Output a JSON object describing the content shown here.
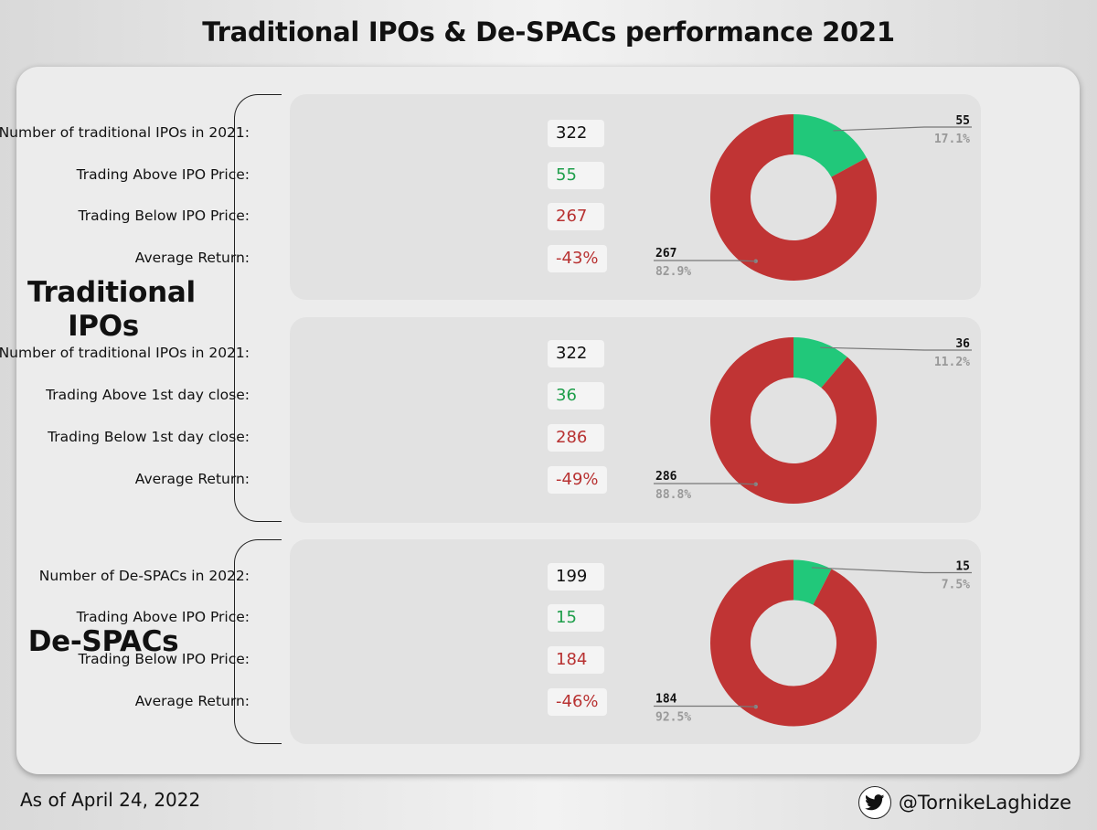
{
  "title": "Traditional IPOs & De-SPACs performance 2021",
  "groups": [
    {
      "line1": "Traditional",
      "line2": "IPOs"
    },
    {
      "line1": "De-SPACs",
      "line2": ""
    }
  ],
  "colors": {
    "above": "#21c87a",
    "below": "#c03434",
    "positive_text": "#1e9e4a",
    "negative_text": "#b83232"
  },
  "cards": [
    {
      "rows": [
        {
          "label": "Number of traditional IPOs in 2021:",
          "value": "322"
        },
        {
          "label": "Trading Above IPO Price:",
          "value": "55"
        },
        {
          "label": "Trading Below IPO Price:",
          "value": "267"
        },
        {
          "label": "Average Return:",
          "value": "-43%"
        }
      ],
      "above_count": "55",
      "above_pct": "17.1%",
      "below_count": "267",
      "below_pct": "82.9%"
    },
    {
      "rows": [
        {
          "label": "Number of traditional IPOs in 2021:",
          "value": "322"
        },
        {
          "label": "Trading Above 1st day close:",
          "value": "36"
        },
        {
          "label": "Trading Below 1st day close:",
          "value": "286"
        },
        {
          "label": "Average Return:",
          "value": "-49%"
        }
      ],
      "above_count": "36",
      "above_pct": "11.2%",
      "below_count": "286",
      "below_pct": "88.8%"
    },
    {
      "rows": [
        {
          "label": "Number of De-SPACs in 2022:",
          "value": "199"
        },
        {
          "label": "Trading Above IPO Price:",
          "value": "15"
        },
        {
          "label": "Trading Below IPO Price:",
          "value": "184"
        },
        {
          "label": "Average Return:",
          "value": "-46%"
        }
      ],
      "above_count": "15",
      "above_pct": "7.5%",
      "below_count": "184",
      "below_pct": "92.5%"
    }
  ],
  "chart_data": [
    {
      "type": "pie",
      "donut": true,
      "categories": [
        "Trading Above IPO Price",
        "Trading Below IPO Price"
      ],
      "values": [
        55,
        267
      ],
      "labels": [
        "55",
        "267"
      ],
      "percents": [
        "17.1%",
        "82.9%"
      ]
    },
    {
      "type": "pie",
      "donut": true,
      "categories": [
        "Trading Above 1st day close",
        "Trading Below 1st day close"
      ],
      "values": [
        36,
        286
      ],
      "labels": [
        "36",
        "286"
      ],
      "percents": [
        "11.2%",
        "88.8%"
      ]
    },
    {
      "type": "pie",
      "donut": true,
      "categories": [
        "Trading Above IPO Price",
        "Trading Below IPO Price"
      ],
      "values": [
        15,
        184
      ],
      "labels": [
        "15",
        "184"
      ],
      "percents": [
        "7.5%",
        "92.5%"
      ]
    }
  ],
  "footer": {
    "date_note": "As of April 24, 2022",
    "handle": "@TornikeLaghidze",
    "icon": "twitter-bird-icon"
  }
}
